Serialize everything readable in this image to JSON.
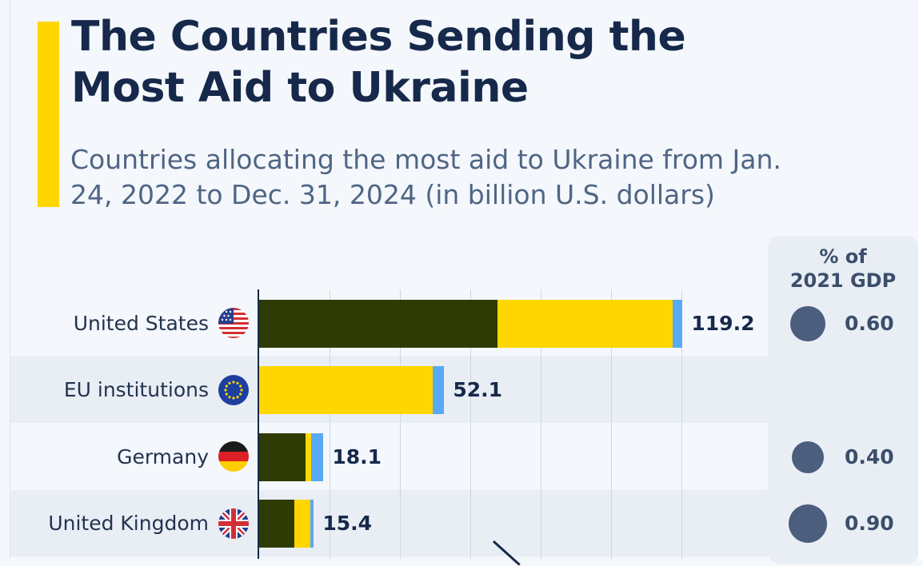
{
  "accent_color": "#ffd600",
  "title": "The Countries Sending the Most Aid to Ukraine",
  "subtitle": "Countries allocating the most aid to Ukraine from Jan. 24, 2022 to Dec. 31, 2024 (in billion U.S. dollars)",
  "gdp_header": [
    "% of",
    "2021 GDP"
  ],
  "colors": {
    "dark_segment": "#2f3b04",
    "yellow_segment": "#ffd600",
    "blue_segment": "#5aa9f5",
    "bubble": "#4b5e7d"
  },
  "chart_data": {
    "type": "bar",
    "orientation": "horizontal",
    "stacked": true,
    "categories": [
      "United States",
      "EU institutions",
      "Germany",
      "United Kingdom"
    ],
    "series": [
      {
        "values": [
          67.0,
          0,
          13.0,
          10.0
        ]
      },
      {
        "values": [
          49.3,
          48.9,
          1.6,
          4.5
        ]
      },
      {
        "values": [
          2.9,
          3.2,
          3.5,
          0.9
        ]
      }
    ],
    "totals": [
      "119.2",
      "52.1",
      "18.1",
      "15.4"
    ],
    "gdp_percent": [
      0.6,
      null,
      0.4,
      0.9
    ],
    "gdp_percent_labels": [
      "0.60",
      "",
      "0.40",
      "0.90"
    ],
    "xlim": [
      0,
      120
    ],
    "grid": true
  }
}
